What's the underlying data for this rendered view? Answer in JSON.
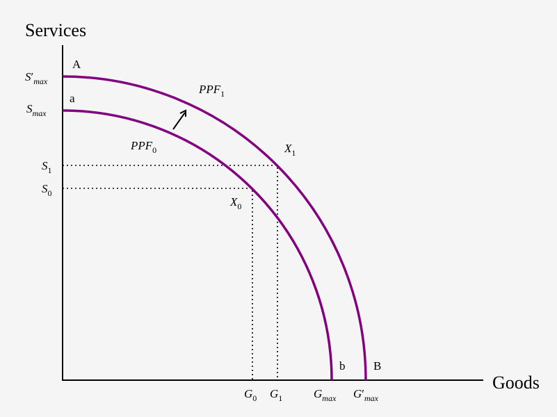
{
  "axes": {
    "y_title": "Services",
    "x_title": "Goods"
  },
  "y_ticks": {
    "s_max_prime": {
      "main": "S",
      "prime": "′",
      "sub": "max"
    },
    "s_max": {
      "main": "S",
      "sub": "max"
    },
    "s1": {
      "main": "S",
      "sub": "1"
    },
    "s0": {
      "main": "S",
      "sub": "0"
    }
  },
  "x_ticks": {
    "g0": {
      "main": "G",
      "sub": "0"
    },
    "g1": {
      "main": "G",
      "sub": "1"
    },
    "g_max": {
      "main": "G",
      "sub": "max"
    },
    "g_max_prime": {
      "main": "G",
      "prime": "′",
      "sub": "max"
    }
  },
  "curves": {
    "ppf0": {
      "main": "PPF",
      "sub": "0"
    },
    "ppf1": {
      "main": "PPF",
      "sub": "1"
    },
    "color": "#800080"
  },
  "points": {
    "X0": {
      "main": "X",
      "sub": "0"
    },
    "X1": {
      "main": "X",
      "sub": "1"
    },
    "A": "A",
    "a": "a",
    "B": "B",
    "b": "b"
  }
}
